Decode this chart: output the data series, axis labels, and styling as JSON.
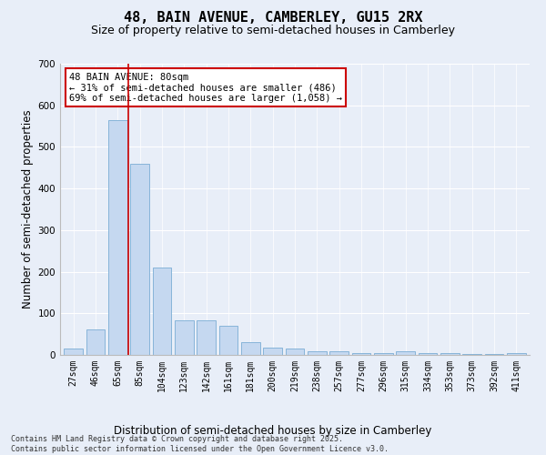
{
  "title_line1": "48, BAIN AVENUE, CAMBERLEY, GU15 2RX",
  "title_line2": "Size of property relative to semi-detached houses in Camberley",
  "xlabel": "Distribution of semi-detached houses by size in Camberley",
  "ylabel": "Number of semi-detached properties",
  "categories": [
    "27sqm",
    "46sqm",
    "65sqm",
    "85sqm",
    "104sqm",
    "123sqm",
    "142sqm",
    "161sqm",
    "181sqm",
    "200sqm",
    "219sqm",
    "238sqm",
    "257sqm",
    "277sqm",
    "296sqm",
    "315sqm",
    "334sqm",
    "353sqm",
    "373sqm",
    "392sqm",
    "411sqm"
  ],
  "values": [
    15,
    62,
    565,
    460,
    210,
    83,
    83,
    70,
    30,
    18,
    15,
    8,
    8,
    5,
    5,
    8,
    5,
    5,
    2,
    2,
    5
  ],
  "bar_color": "#c5d8f0",
  "bar_edge_color": "#7aadd4",
  "vline_x": 2.5,
  "vline_color": "#cc0000",
  "annotation_text": "48 BAIN AVENUE: 80sqm\n← 31% of semi-detached houses are smaller (486)\n69% of semi-detached houses are larger (1,058) →",
  "annotation_box_color": "#cc0000",
  "ylim": [
    0,
    700
  ],
  "yticks": [
    0,
    100,
    200,
    300,
    400,
    500,
    600,
    700
  ],
  "bg_color": "#e8eef8",
  "plot_bg_color": "#e8eef8",
  "footer_text": "Contains HM Land Registry data © Crown copyright and database right 2025.\nContains public sector information licensed under the Open Government Licence v3.0.",
  "title_fontsize": 11,
  "subtitle_fontsize": 9,
  "axis_label_fontsize": 8.5,
  "tick_fontsize": 7,
  "annotation_fontsize": 7.5,
  "footer_fontsize": 6
}
